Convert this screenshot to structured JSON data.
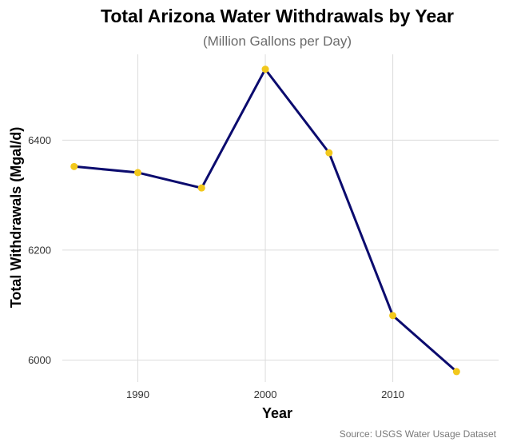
{
  "chart_data": {
    "type": "line",
    "title": "Total Arizona Water Withdrawals by Year",
    "subtitle": "(Million Gallons per Day)",
    "xlabel": "Year",
    "ylabel": "Total Withdrawals (Mgal/d)",
    "caption": "Source: USGS Water Usage Dataset",
    "x": [
      1985,
      1990,
      1995,
      2000,
      2005,
      2010,
      2015
    ],
    "series": [
      {
        "values": [
          6352,
          6341,
          6313,
          6529,
          6377,
          6081,
          5979
        ]
      }
    ],
    "xlim": [
      1983.7,
      2018.3
    ],
    "ylim": [
      5960,
      6556
    ],
    "xticks": [
      1990,
      2000,
      2010
    ],
    "xtick_labels": [
      "1990",
      "2000",
      "2010"
    ],
    "yticks": [
      6000,
      6200,
      6400
    ],
    "ytick_labels": [
      "6000",
      "6200",
      "6400"
    ],
    "grid": true,
    "line_color": "#0b0b6e",
    "point_color": "#f2c81c"
  }
}
